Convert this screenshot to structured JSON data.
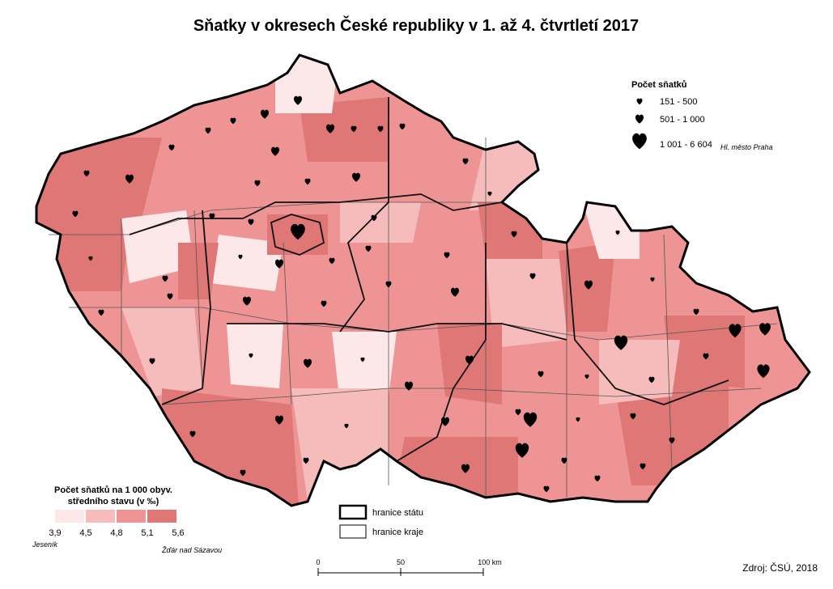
{
  "header": {
    "title": "Sňatky v okresech České republiky v 1. až 4. čtvrtletí 2017"
  },
  "size_legend": {
    "title": "Počet sňatků",
    "items": [
      "151 - 500",
      "501 - 1 000",
      "1 001 - 6 604"
    ],
    "note": "Hl. město Praha"
  },
  "color_legend": {
    "title_lines": [
      "Počet sňatků na 1 000 obyv.",
      "středního stavu (v ‰)"
    ],
    "breaks": [
      "3,9",
      "4,5",
      "4,8",
      "5,1",
      "5,6"
    ],
    "colors": [
      "#fce8e8",
      "#f6bcbc",
      "#ee9494",
      "#df7777"
    ],
    "min_label": "Jeseník",
    "max_label": "Žďár nad Sázavou"
  },
  "border_legend": [
    "hranice státu",
    "hranice kraje"
  ],
  "scale": [
    "0",
    "50",
    "100 km"
  ],
  "source": "Zdroj: ČSÚ, 2018"
}
